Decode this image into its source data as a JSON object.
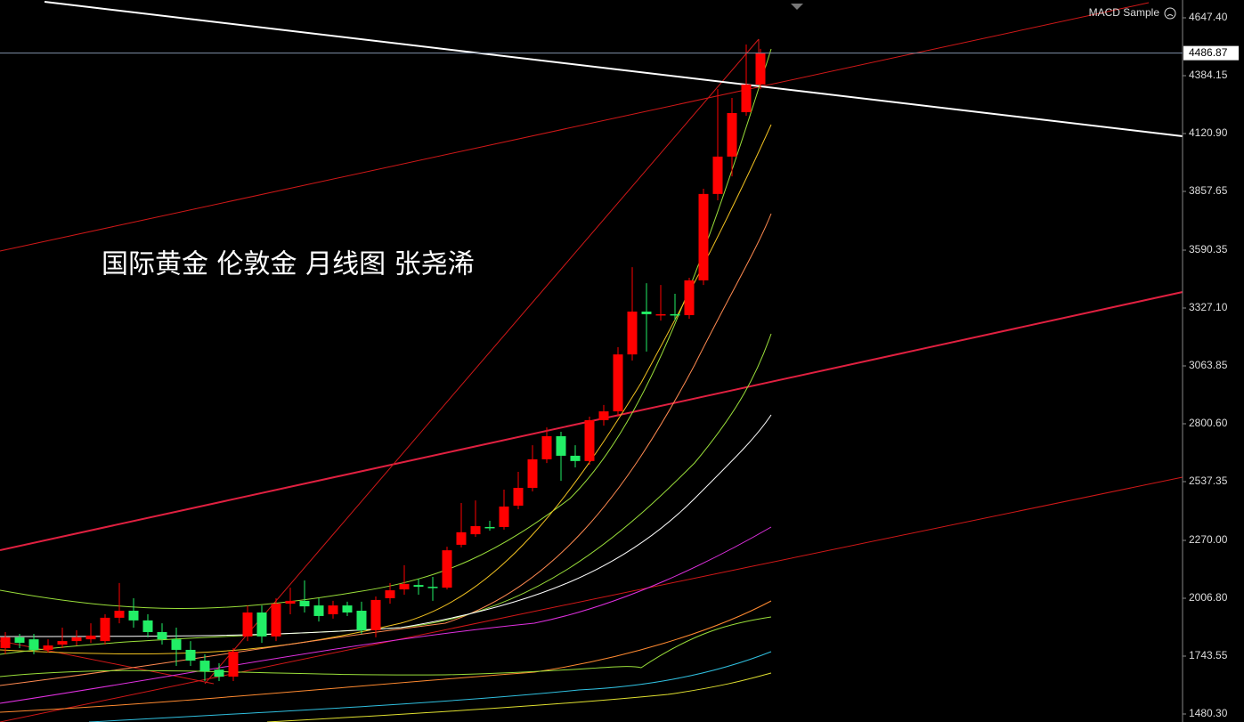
{
  "chart_data": {
    "type": "candlestick",
    "title": "国际黄金 伦敦金 月线图 张尧浠",
    "indicator": "MACD Sample",
    "ylim": [
      1443.8,
      4728.4
    ],
    "yticks": [
      {
        "value": 4647.4,
        "label": "4647.40"
      },
      {
        "value": 4384.15,
        "label": "4384.15"
      },
      {
        "value": 4120.9,
        "label": "4120.90"
      },
      {
        "value": 3857.65,
        "label": "3857.65"
      },
      {
        "value": 3590.35,
        "label": "3590.35"
      },
      {
        "value": 3327.1,
        "label": "3327.10"
      },
      {
        "value": 3063.85,
        "label": "3063.85"
      },
      {
        "value": 2800.6,
        "label": "2800.60"
      },
      {
        "value": 2537.35,
        "label": "2537.35"
      },
      {
        "value": 2270,
        "label": "2270.00"
      },
      {
        "value": 2006.8,
        "label": "2006.80"
      },
      {
        "value": 1743.55,
        "label": "1743.55"
      },
      {
        "value": 1480.3,
        "label": "1480.30"
      }
    ],
    "last_price": 4486.87,
    "up_color": "#ff0000",
    "down_color": "#22ee66",
    "open": [
      1780,
      1829,
      1820,
      1772,
      1796,
      1812,
      1820,
      1812,
      1918,
      1950,
      1906,
      1853,
      1820,
      1772,
      1723,
      1682,
      1650,
      1833,
      1942,
      1833,
      1982,
      1995,
      1974,
      1934,
      1974,
      1950,
      1861,
      2007,
      2047,
      2067,
      2059,
      2055,
      2250,
      2298,
      2331,
      2331,
      2428,
      2509,
      2639,
      2744,
      2655,
      2631,
      2817,
      2857,
      3116,
      3311,
      3299,
      3299,
      3295,
      3453,
      3846,
      4016,
      4218,
      4344
    ],
    "high": [
      1853,
      1845,
      1845,
      1820,
      1873,
      1861,
      1893,
      1934,
      2076,
      2007,
      1934,
      1893,
      1873,
      1812,
      1752,
      1711,
      1780,
      1974,
      1974,
      2007,
      2055,
      2088,
      2007,
      1995,
      1991,
      1991,
      2015,
      2076,
      2157,
      2096,
      2104,
      2241,
      2440,
      2452,
      2359,
      2501,
      2582,
      2703,
      2784,
      2764,
      2703,
      2833,
      2886,
      3149,
      3513,
      3440,
      3432,
      3392,
      3465,
      3870,
      4323,
      4283,
      4526,
      4506
    ],
    "low": [
      1752,
      1780,
      1752,
      1760,
      1780,
      1792,
      1804,
      1796,
      1893,
      1873,
      1829,
      1796,
      1699,
      1699,
      1630,
      1630,
      1630,
      1812,
      1804,
      1812,
      1934,
      1942,
      1901,
      1914,
      1926,
      1845,
      1829,
      1982,
      2023,
      2023,
      1995,
      2047,
      2238,
      2286,
      2314,
      2319,
      2412,
      2493,
      2622,
      2541,
      2602,
      2614,
      2792,
      2833,
      3088,
      3129,
      3270,
      3270,
      3278,
      3432,
      3817,
      3926,
      4202,
      4323
    ],
    "close": [
      1829,
      1804,
      1772,
      1792,
      1812,
      1829,
      1837,
      1918,
      1950,
      1906,
      1853,
      1820,
      1772,
      1723,
      1674,
      1650,
      1764,
      1942,
      1833,
      1982,
      1995,
      1970,
      1926,
      1974,
      1942,
      1861,
      1999,
      2043,
      2072,
      2059,
      2055,
      2225,
      2307,
      2335,
      2327,
      2424,
      2509,
      2639,
      2744,
      2655,
      2631,
      2817,
      2857,
      3116,
      3311,
      3299,
      3299,
      3295,
      3453,
      3846,
      4016,
      4214,
      4344,
      4486.87
    ]
  }
}
